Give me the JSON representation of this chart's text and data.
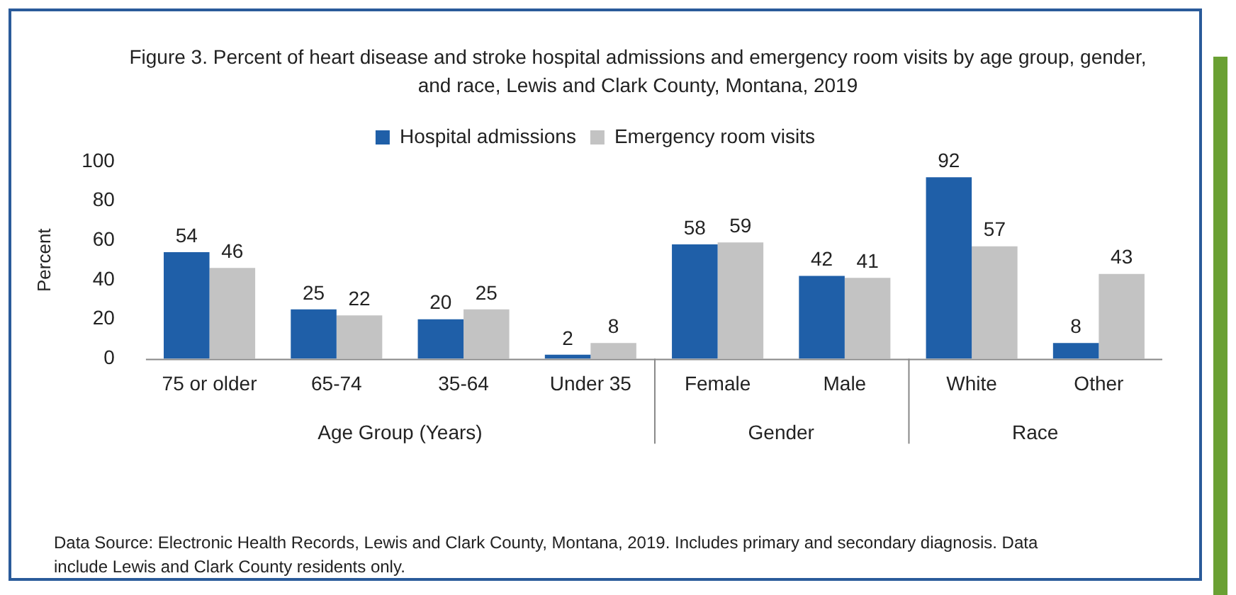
{
  "chart_data": {
    "type": "bar",
    "title": "Figure 3. Percent of heart disease and stroke hospital admissions and emergency room visits by age group, gender, and race, Lewis and Clark County, Montana, 2019",
    "ylabel": "Percent",
    "categories": [
      "75 or older",
      "65-74",
      "35-64",
      "Under 35",
      "Female",
      "Male",
      "White",
      "Other"
    ],
    "series": [
      {
        "name": "Hospital admissions",
        "color": "#1f5fa8",
        "values": [
          54,
          25,
          20,
          2,
          58,
          42,
          92,
          8
        ]
      },
      {
        "name": "Emergency room visits",
        "color": "#c3c3c3",
        "values": [
          46,
          22,
          25,
          8,
          59,
          41,
          57,
          43
        ]
      }
    ],
    "ylim": [
      0,
      100
    ],
    "yticks": [
      0,
      20,
      40,
      60,
      80,
      100
    ],
    "grid": false,
    "legend": "top",
    "data_labels": true,
    "annotations": [
      "Age Group (Years)",
      "Gender",
      "Race",
      "Data Source: Electronic Health Records, Lewis and Clark County, Montana, 2019. Includes primary and secondary diagnosis. Data include Lewis and Clark County residents only."
    ]
  }
}
